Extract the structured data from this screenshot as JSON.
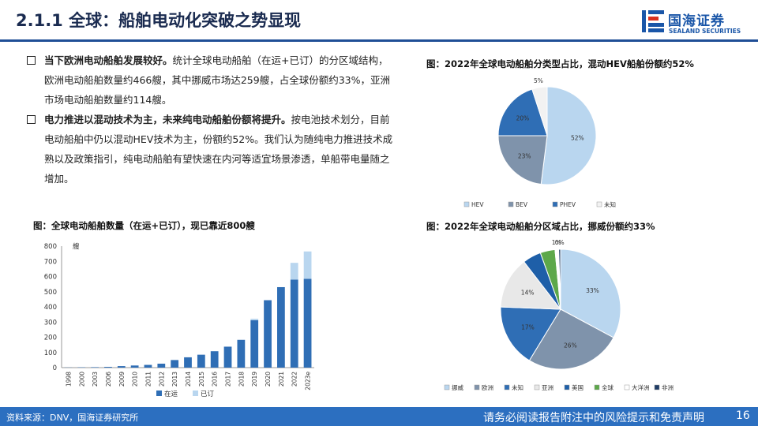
{
  "header": {
    "title": "2.1.1 全球：船舶电动化突破之势显现",
    "logo_cn": "国海证券",
    "logo_en": "SEALAND SECURITIES",
    "colors": {
      "rule": "#1f4e96",
      "brand": "#1a56a8"
    }
  },
  "bullets": [
    {
      "bold": "当下欧洲电动船舶发展较好。",
      "text": "统计全球电动船舶（在运+已订）的分区域结构，欧洲电动船舶数量约466艘，其中挪威市场达259艘，占全球份额约33%，亚洲市场电动船舶数量约114艘。"
    },
    {
      "bold": "电力推进以混动技术为主，未来纯电动船舶份额将提升。",
      "text": "按电池技术划分，目前电动船舶中仍以混动HEV技术为主，份额约52%。我们认为随纯电力推进技术成熟以及政策指引，纯电动船舶有望快速在内河等适宜场景渗透，单船带电量随之增加。"
    }
  ],
  "fig_titles": {
    "bar": "图：全球电动船舶数量（在运+已订），现已靠近800艘",
    "pie_type": "图：2022年全球电动船舶分类型占比，混动HEV船舶份额约52%",
    "pie_region": "图：2022年全球电动船舶分区域占比，挪威份额约33%"
  },
  "chart_data": [
    {
      "type": "bar",
      "stacked": true,
      "ylabel": "艘",
      "ylim": [
        0,
        800
      ],
      "yticks": [
        0,
        100,
        200,
        300,
        400,
        500,
        600,
        700,
        800
      ],
      "categories": [
        "1998",
        "2000",
        "2003",
        "2006",
        "2009",
        "2010",
        "2011",
        "2012",
        "2013",
        "2014",
        "2015",
        "2016",
        "2017",
        "2018",
        "2019",
        "2020",
        "2021",
        "2022",
        "2023e"
      ],
      "series": [
        {
          "name": "在运",
          "color": "#2f6eb5",
          "values": [
            1,
            2,
            3,
            5,
            10,
            14,
            18,
            26,
            50,
            68,
            85,
            108,
            138,
            183,
            312,
            444,
            530,
            580,
            585
          ]
        },
        {
          "name": "已订",
          "color": "#b9d6ef",
          "values": [
            0,
            0,
            0,
            0,
            0,
            0,
            0,
            0,
            0,
            0,
            0,
            0,
            0,
            0,
            10,
            0,
            0,
            110,
            180
          ]
        }
      ],
      "legend_position": "bottom",
      "grid": false
    },
    {
      "type": "pie",
      "slices": [
        {
          "name": "HEV",
          "value": 52,
          "label": "52%",
          "color": "#b9d6ef"
        },
        {
          "name": "BEV",
          "value": 23,
          "label": "23%",
          "color": "#7f93ab"
        },
        {
          "name": "PHEV",
          "value": 20,
          "label": "20%",
          "color": "#2f6eb5"
        },
        {
          "name": "未知",
          "value": 5,
          "label": "5%",
          "color": "#f2f2f2"
        }
      ],
      "legend_position": "bottom"
    },
    {
      "type": "pie",
      "slices": [
        {
          "name": "挪威",
          "value": 33,
          "label": "33%",
          "color": "#b9d6ef"
        },
        {
          "name": "欧洲",
          "value": 26,
          "label": "26%",
          "color": "#7f93ab"
        },
        {
          "name": "未知",
          "value": 17,
          "label": "17%",
          "color": "#2f6eb5"
        },
        {
          "name": "亚洲",
          "value": 14,
          "label": "14%",
          "color": "#e8e8e8"
        },
        {
          "name": "美国",
          "value": 5,
          "label": "",
          "color": "#1e5fa8"
        },
        {
          "name": "全球",
          "value": 4,
          "label": "",
          "color": "#5da84a"
        },
        {
          "name": "大洋洲",
          "value": 1,
          "label": "1%",
          "color": "#ffffff"
        },
        {
          "name": "非洲",
          "value": 0.5,
          "label": "0%",
          "color": "#1f3c66"
        }
      ],
      "legend_position": "bottom"
    }
  ],
  "footer": {
    "source": "资料来源：DNV，国海证券研究所",
    "disclaimer": "请务必阅读报告附注中的风险提示和免责声明",
    "page": "16"
  }
}
